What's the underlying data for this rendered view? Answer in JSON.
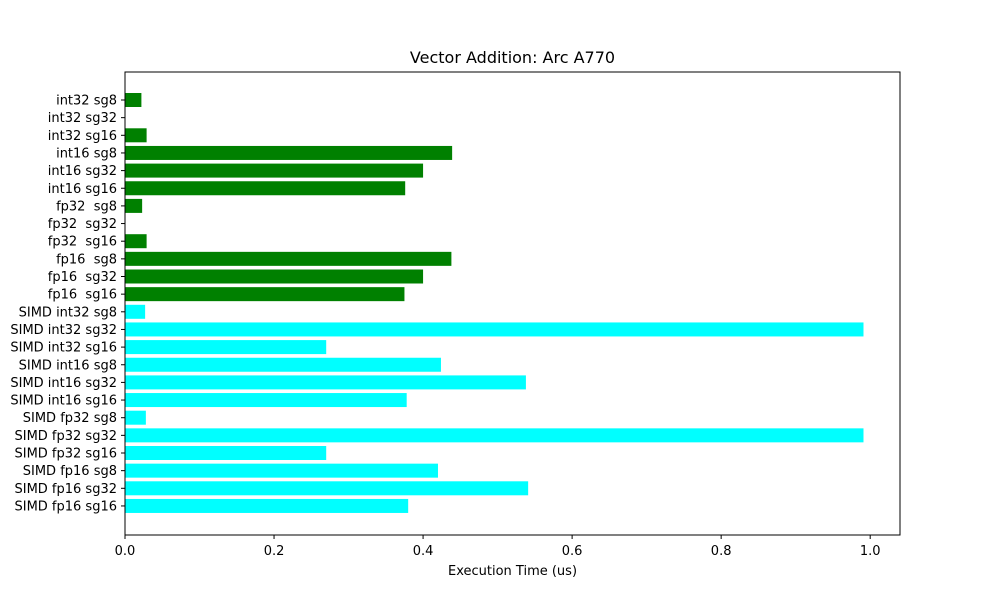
{
  "chart_data": {
    "type": "bar",
    "orientation": "horizontal",
    "title": "Vector Addition: Arc A770",
    "xlabel": "Execution Time (us)",
    "ylabel": "",
    "xlim": [
      0,
      1.04
    ],
    "xticks": [
      0.0,
      0.2,
      0.4,
      0.6,
      0.8,
      1.0
    ],
    "xtick_labels": [
      "0.0",
      "0.2",
      "0.4",
      "0.6",
      "0.8",
      "1.0"
    ],
    "grid": false,
    "categories": [
      "int32 sg8",
      "int32 sg32",
      "int32 sg16",
      "int16 sg8",
      "int16 sg32",
      "int16 sg16",
      "fp32  sg8",
      "fp32  sg32",
      "fp32  sg16",
      "fp16  sg8",
      "fp16  sg32",
      "fp16  sg16",
      "SIMD int32 sg8",
      "SIMD int32 sg32",
      "SIMD int32 sg16",
      "SIMD int16 sg8",
      "SIMD int16 sg32",
      "SIMD int16 sg16",
      "SIMD fp32 sg8",
      "SIMD fp32 sg32",
      "SIMD fp32 sg16",
      "SIMD fp16 sg8",
      "SIMD fp16 sg32",
      "SIMD fp16 sg16"
    ],
    "values": [
      0.022,
      0.0,
      0.029,
      0.439,
      0.4,
      0.376,
      0.023,
      0.0,
      0.029,
      0.438,
      0.4,
      0.375,
      0.027,
      0.991,
      0.27,
      0.424,
      0.538,
      0.378,
      0.028,
      0.991,
      0.27,
      0.42,
      0.541,
      0.38
    ],
    "colors": [
      "#008000",
      "#008000",
      "#008000",
      "#008000",
      "#008000",
      "#008000",
      "#008000",
      "#008000",
      "#008000",
      "#008000",
      "#008000",
      "#008000",
      "#00ffff",
      "#00ffff",
      "#00ffff",
      "#00ffff",
      "#00ffff",
      "#00ffff",
      "#00ffff",
      "#00ffff",
      "#00ffff",
      "#00ffff",
      "#00ffff",
      "#00ffff"
    ]
  }
}
